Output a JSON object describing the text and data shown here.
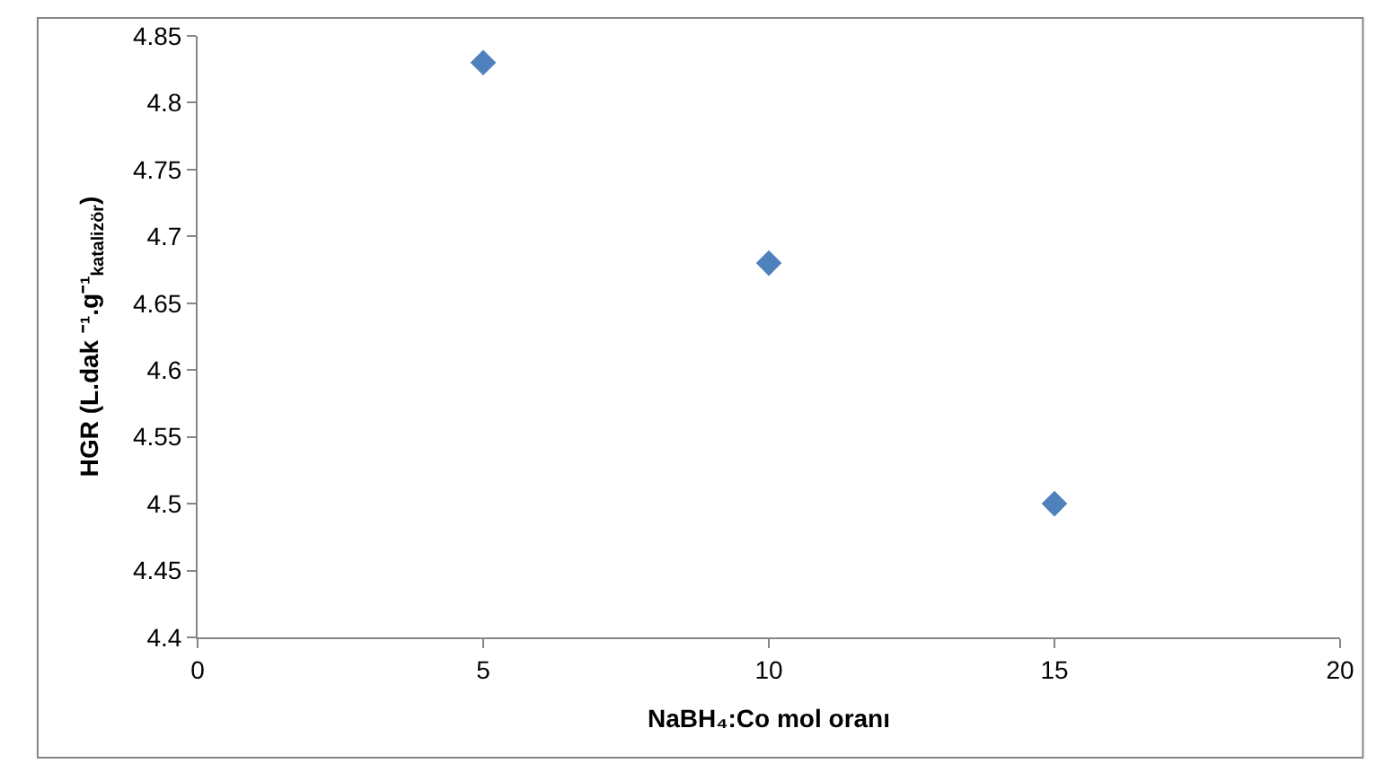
{
  "chart_data": {
    "type": "scatter",
    "xlabel": "NaBH₄:Co mol oranı",
    "ylabel": "HGR (L.dak ⁻¹.g⁻¹$_{katalizör}$)",
    "x": [
      5,
      10,
      15
    ],
    "series": [
      {
        "color": "#4f81bd",
        "values": [
          4.83,
          4.68,
          4.5
        ]
      }
    ],
    "xlim": [
      0,
      20
    ],
    "xticks": [
      0,
      5,
      10,
      15,
      20
    ],
    "ylim": [
      4.4,
      4.85
    ],
    "yticks": [
      4.4,
      4.45,
      4.5,
      4.55,
      4.6,
      4.65,
      4.7,
      4.75,
      4.8,
      4.85
    ],
    "marker": "diamond",
    "legend": false
  }
}
